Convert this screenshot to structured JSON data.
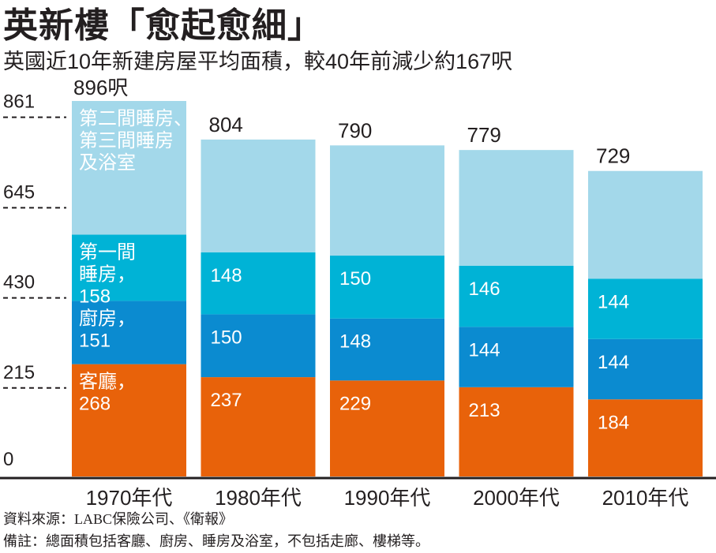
{
  "header": {
    "title": "英新樓「愈起愈細」",
    "subtitle": "英國近10年新建房屋平均面積，較40年前減少約167呎"
  },
  "footer": {
    "source": "資料來源：LABC保險公司、《衛報》",
    "note": "備註：總面積包括客廳、廚房、睡房及浴室，不包括走廊、樓梯等。"
  },
  "chart_data": {
    "type": "bar",
    "stacked": true,
    "title": "英新樓「愈起愈細」",
    "subtitle": "英國近10年新建房屋平均面積，較40年前減少約167呎",
    "xlabel": "",
    "ylabel": "",
    "unit": "呎",
    "ylim": [
      0,
      896
    ],
    "yticks": [
      0,
      215,
      430,
      645,
      861
    ],
    "ytick_labels": [
      "0",
      "215",
      "430",
      "645",
      "861"
    ],
    "grid": "dashed short lines at y ticks, left of first bar",
    "categories": [
      "1970年代",
      "1980年代",
      "1990年代",
      "2000年代",
      "2010年代"
    ],
    "totals": [
      896,
      804,
      790,
      779,
      729
    ],
    "total_labels": [
      "896呎",
      "804",
      "790",
      "779",
      "729"
    ],
    "series": [
      {
        "name": "客廳",
        "color": "#e8620a",
        "values": [
          268,
          237,
          229,
          213,
          184
        ],
        "labels": [
          "268",
          "237",
          "229",
          "213",
          "184"
        ],
        "first_label_prefix": "客廳，"
      },
      {
        "name": "廚房",
        "color": "#0b8bd0",
        "values": [
          151,
          150,
          148,
          144,
          144
        ],
        "labels": [
          "151",
          "150",
          "148",
          "144",
          "144"
        ],
        "first_label_prefix": "廚房，"
      },
      {
        "name": "第一間睡房",
        "color": "#00b3d6",
        "values": [
          158,
          148,
          150,
          146,
          144
        ],
        "labels": [
          "158",
          "148",
          "150",
          "146",
          "144"
        ],
        "first_label_lines": [
          "第一間",
          "睡房，"
        ]
      },
      {
        "name": "第二間睡房、第三間睡房及浴室",
        "color": "#a3d8ea",
        "values": [
          319,
          269,
          263,
          276,
          257
        ],
        "labels": [
          "",
          "",
          "",
          "",
          ""
        ],
        "first_label_lines": [
          "第二間睡房、",
          "第三間睡房",
          "及浴室"
        ]
      }
    ],
    "legend": "inline labels inside first bar"
  }
}
